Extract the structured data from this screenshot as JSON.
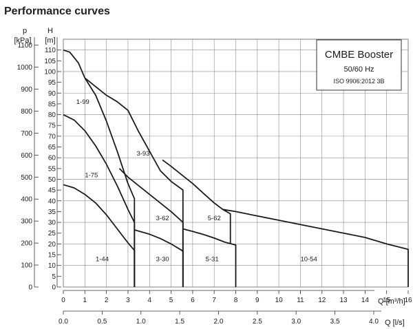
{
  "title": "Performance curves",
  "info_box": {
    "line1": "CMBE Booster",
    "line2": "50/60 Hz",
    "line3": "ISO 9906:2012 3B"
  },
  "chart_data": {
    "type": "line",
    "grid": true,
    "x": {
      "label": "Q [m³/h]",
      "range": [
        0,
        16
      ],
      "ticks": [
        0,
        1,
        2,
        3,
        4,
        5,
        6,
        7,
        8,
        9,
        10,
        11,
        12,
        13,
        14,
        15,
        16
      ]
    },
    "x2": {
      "label": "Q [l/s]",
      "range": [
        0,
        4.444
      ],
      "ticks": [
        "0.0",
        "0.5",
        "1.0",
        "1.5",
        "2.0",
        "2.5",
        "3.0",
        "3.5",
        "4.0"
      ]
    },
    "y": {
      "label_symbol": "H",
      "label_unit": "[m]",
      "range": [
        0,
        115
      ],
      "ticks": [
        0,
        5,
        10,
        15,
        20,
        25,
        30,
        35,
        40,
        45,
        50,
        55,
        60,
        65,
        70,
        75,
        80,
        85,
        90,
        95,
        100,
        105,
        110
      ]
    },
    "y2": {
      "label_symbol": "p",
      "label_unit": "[kPa]",
      "ticks": [
        0,
        100,
        200,
        300,
        400,
        500,
        600,
        700,
        800,
        900,
        1000,
        1100
      ]
    },
    "series": [
      {
        "name": "1-44",
        "label_at": [
          1.5,
          12
        ],
        "points": [
          [
            0,
            47.5
          ],
          [
            0.5,
            46
          ],
          [
            1,
            43
          ],
          [
            1.5,
            39
          ],
          [
            2,
            33.5
          ],
          [
            2.5,
            27
          ],
          [
            3,
            20.5
          ],
          [
            3.3,
            17
          ],
          [
            3.3,
            0
          ]
        ]
      },
      {
        "name": "1-75",
        "label_at": [
          1,
          51
        ],
        "points": [
          [
            0,
            80
          ],
          [
            0.5,
            77.5
          ],
          [
            1,
            72.5
          ],
          [
            1.5,
            65.5
          ],
          [
            2,
            57
          ],
          [
            2.5,
            47
          ],
          [
            3,
            36
          ],
          [
            3.3,
            30
          ],
          [
            3.3,
            0
          ]
        ]
      },
      {
        "name": "1-99",
        "label_at": [
          0.6,
          85
        ],
        "points": [
          [
            0,
            110
          ],
          [
            0.3,
            109
          ],
          [
            0.7,
            104
          ],
          [
            1.0,
            97
          ],
          [
            1.5,
            89
          ],
          [
            2,
            77
          ],
          [
            2.5,
            63
          ],
          [
            3,
            48
          ],
          [
            3.3,
            41
          ],
          [
            3.3,
            0
          ]
        ]
      },
      {
        "name": "3-30",
        "label_at": [
          4.3,
          12
        ],
        "points": [
          [
            3.3,
            26.5
          ],
          [
            4,
            24.5
          ],
          [
            4.5,
            22.5
          ],
          [
            5,
            20
          ],
          [
            5.5,
            17
          ],
          [
            5.55,
            16.5
          ],
          [
            5.55,
            0
          ]
        ]
      },
      {
        "name": "3-62",
        "label_at": [
          4.3,
          31
        ],
        "points": [
          [
            2.6,
            55
          ],
          [
            3,
            51
          ],
          [
            3.5,
            47
          ],
          [
            4,
            43
          ],
          [
            4.5,
            39
          ],
          [
            5,
            35
          ],
          [
            5.55,
            30
          ],
          [
            5.55,
            0
          ]
        ]
      },
      {
        "name": "3-93",
        "label_at": [
          3.4,
          61
        ],
        "points": [
          [
            1.0,
            97
          ],
          [
            1.5,
            93
          ],
          [
            2,
            89
          ],
          [
            2.5,
            86
          ],
          [
            3,
            82
          ],
          [
            3.5,
            72
          ],
          [
            4,
            63
          ],
          [
            4.5,
            54
          ],
          [
            5,
            49
          ],
          [
            5.55,
            45
          ],
          [
            5.55,
            0
          ]
        ]
      },
      {
        "name": "5-31",
        "label_at": [
          6.6,
          12
        ],
        "points": [
          [
            5.55,
            27
          ],
          [
            6,
            25.8
          ],
          [
            6.5,
            24.4
          ],
          [
            7,
            22.7
          ],
          [
            7.5,
            20.8
          ],
          [
            8.0,
            19.5
          ],
          [
            8.0,
            0
          ]
        ]
      },
      {
        "name": "5-62",
        "label_at": [
          6.7,
          31
        ],
        "points": [
          [
            4.6,
            59
          ],
          [
            5,
            56
          ],
          [
            5.5,
            52
          ],
          [
            6,
            48
          ],
          [
            6.5,
            43.5
          ],
          [
            7,
            39
          ],
          [
            7.4,
            36
          ],
          [
            7.75,
            34
          ],
          [
            7.75,
            20
          ]
        ]
      },
      {
        "name": "10-54",
        "label_at": [
          11,
          12
        ],
        "points": [
          [
            7.4,
            36
          ],
          [
            8,
            35
          ],
          [
            9,
            33
          ],
          [
            10,
            31
          ],
          [
            11,
            29
          ],
          [
            12,
            27
          ],
          [
            13,
            25
          ],
          [
            14,
            23
          ],
          [
            15,
            20
          ],
          [
            16,
            17.5
          ],
          [
            16,
            0
          ]
        ]
      }
    ]
  }
}
